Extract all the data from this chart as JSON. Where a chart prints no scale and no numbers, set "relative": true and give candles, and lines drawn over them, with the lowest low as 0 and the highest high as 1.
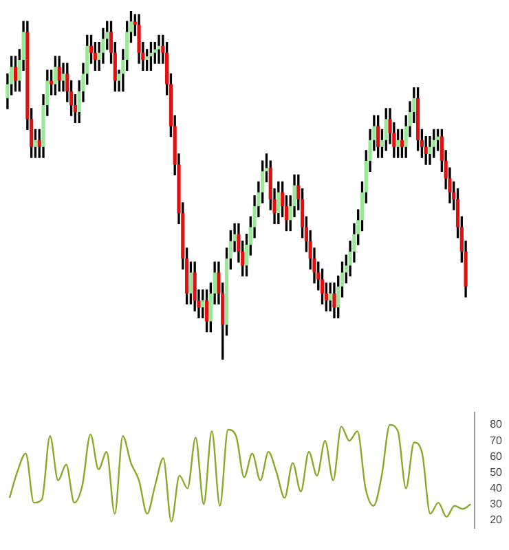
{
  "chart_data": [
    {
      "type": "candlestick",
      "relative": true,
      "categories": [
        null,
        null,
        null,
        null,
        null,
        null,
        null,
        null,
        null,
        null,
        null,
        null,
        null,
        null,
        null,
        null,
        null,
        null,
        null,
        null,
        null,
        null,
        null,
        null,
        null,
        null,
        null,
        null,
        null,
        null,
        null,
        null,
        null,
        null,
        null,
        null,
        null,
        null,
        null,
        null,
        null,
        null,
        null,
        null,
        null,
        null,
        null,
        null,
        null,
        null,
        null,
        null,
        null,
        null,
        null,
        null,
        null,
        null,
        null,
        null,
        null,
        null,
        null,
        null,
        null,
        null,
        null,
        null,
        null,
        null,
        null,
        null,
        null,
        null,
        null,
        null,
        null,
        null,
        null,
        null,
        null,
        null,
        null,
        null,
        null,
        null,
        null,
        null,
        null,
        null,
        null,
        null,
        null,
        null,
        null,
        null,
        null,
        null,
        null,
        null,
        null,
        null,
        null,
        null,
        null,
        null,
        null,
        null,
        null,
        null,
        null,
        null,
        null,
        null,
        null,
        null
      ],
      "ohlc": [
        [
          0.75,
          0.82,
          0.72,
          0.79
        ],
        [
          0.79,
          0.87,
          0.76,
          0.84
        ],
        [
          0.84,
          0.87,
          0.77,
          0.8
        ],
        [
          0.8,
          0.89,
          0.77,
          0.86
        ],
        [
          0.86,
          0.97,
          0.83,
          0.94
        ],
        [
          0.94,
          0.97,
          0.66,
          0.69
        ],
        [
          0.69,
          0.72,
          0.58,
          0.61
        ],
        [
          0.61,
          0.66,
          0.58,
          0.63
        ],
        [
          0.63,
          0.66,
          0.58,
          0.61
        ],
        [
          0.61,
          0.76,
          0.58,
          0.73
        ],
        [
          0.73,
          0.83,
          0.7,
          0.8
        ],
        [
          0.8,
          0.83,
          0.76,
          0.79
        ],
        [
          0.79,
          0.87,
          0.76,
          0.84
        ],
        [
          0.84,
          0.87,
          0.77,
          0.8
        ],
        [
          0.8,
          0.85,
          0.77,
          0.82
        ],
        [
          0.82,
          0.85,
          0.74,
          0.77
        ],
        [
          0.77,
          0.8,
          0.7,
          0.73
        ],
        [
          0.73,
          0.76,
          0.68,
          0.71
        ],
        [
          0.71,
          0.8,
          0.68,
          0.77
        ],
        [
          0.77,
          0.85,
          0.74,
          0.82
        ],
        [
          0.82,
          0.93,
          0.79,
          0.9
        ],
        [
          0.9,
          0.93,
          0.85,
          0.88
        ],
        [
          0.88,
          0.91,
          0.83,
          0.86
        ],
        [
          0.86,
          0.91,
          0.83,
          0.88
        ],
        [
          0.88,
          0.95,
          0.85,
          0.92
        ],
        [
          0.92,
          0.97,
          0.89,
          0.94
        ],
        [
          0.94,
          0.97,
          0.85,
          0.88
        ],
        [
          0.88,
          0.91,
          0.77,
          0.8
        ],
        [
          0.8,
          0.83,
          0.77,
          0.82
        ],
        [
          0.82,
          0.89,
          0.77,
          0.86
        ],
        [
          0.86,
          0.97,
          0.83,
          0.94
        ],
        [
          0.94,
          1.0,
          0.91,
          0.97
        ],
        [
          0.97,
          0.99,
          0.93,
          0.96
        ],
        [
          0.96,
          0.99,
          0.85,
          0.88
        ],
        [
          0.88,
          0.91,
          0.83,
          0.86
        ],
        [
          0.86,
          0.89,
          0.83,
          0.87
        ],
        [
          0.87,
          0.91,
          0.83,
          0.88
        ],
        [
          0.88,
          0.91,
          0.85,
          0.89
        ],
        [
          0.89,
          0.93,
          0.85,
          0.9
        ],
        [
          0.9,
          0.93,
          0.85,
          0.88
        ],
        [
          0.88,
          0.91,
          0.76,
          0.79
        ],
        [
          0.79,
          0.82,
          0.64,
          0.67
        ],
        [
          0.67,
          0.7,
          0.53,
          0.56
        ],
        [
          0.56,
          0.59,
          0.39,
          0.42
        ],
        [
          0.42,
          0.45,
          0.26,
          0.29
        ],
        [
          0.29,
          0.32,
          0.16,
          0.19
        ],
        [
          0.19,
          0.28,
          0.16,
          0.25
        ],
        [
          0.25,
          0.28,
          0.14,
          0.17
        ],
        [
          0.17,
          0.2,
          0.12,
          0.15
        ],
        [
          0.15,
          0.2,
          0.12,
          0.17
        ],
        [
          0.17,
          0.2,
          0.08,
          0.11
        ],
        [
          0.11,
          0.22,
          0.08,
          0.19
        ],
        [
          0.19,
          0.28,
          0.16,
          0.25
        ],
        [
          0.25,
          0.28,
          0.16,
          0.19
        ],
        [
          0.19,
          0.22,
          0.0,
          0.1
        ],
        [
          0.1,
          0.32,
          0.07,
          0.29
        ],
        [
          0.29,
          0.37,
          0.26,
          0.34
        ],
        [
          0.34,
          0.39,
          0.31,
          0.36
        ],
        [
          0.36,
          0.39,
          0.28,
          0.31
        ],
        [
          0.31,
          0.34,
          0.24,
          0.27
        ],
        [
          0.27,
          0.36,
          0.24,
          0.33
        ],
        [
          0.33,
          0.41,
          0.3,
          0.38
        ],
        [
          0.38,
          0.47,
          0.35,
          0.44
        ],
        [
          0.44,
          0.51,
          0.41,
          0.48
        ],
        [
          0.48,
          0.57,
          0.45,
          0.54
        ],
        [
          0.54,
          0.59,
          0.51,
          0.55
        ],
        [
          0.55,
          0.57,
          0.43,
          0.46
        ],
        [
          0.46,
          0.49,
          0.39,
          0.42
        ],
        [
          0.42,
          0.51,
          0.39,
          0.48
        ],
        [
          0.48,
          0.51,
          0.41,
          0.44
        ],
        [
          0.44,
          0.47,
          0.37,
          0.4
        ],
        [
          0.4,
          0.47,
          0.37,
          0.44
        ],
        [
          0.44,
          0.53,
          0.41,
          0.5
        ],
        [
          0.5,
          0.53,
          0.43,
          0.46
        ],
        [
          0.46,
          0.49,
          0.35,
          0.38
        ],
        [
          0.38,
          0.41,
          0.31,
          0.34
        ],
        [
          0.34,
          0.37,
          0.26,
          0.29
        ],
        [
          0.29,
          0.32,
          0.22,
          0.25
        ],
        [
          0.25,
          0.28,
          0.2,
          0.23
        ],
        [
          0.23,
          0.26,
          0.16,
          0.19
        ],
        [
          0.19,
          0.22,
          0.14,
          0.17
        ],
        [
          0.17,
          0.22,
          0.14,
          0.19
        ],
        [
          0.19,
          0.22,
          0.12,
          0.15
        ],
        [
          0.15,
          0.24,
          0.12,
          0.21
        ],
        [
          0.21,
          0.28,
          0.18,
          0.25
        ],
        [
          0.25,
          0.3,
          0.22,
          0.27
        ],
        [
          0.27,
          0.34,
          0.24,
          0.31
        ],
        [
          0.31,
          0.39,
          0.28,
          0.36
        ],
        [
          0.36,
          0.43,
          0.33,
          0.4
        ],
        [
          0.4,
          0.51,
          0.37,
          0.48
        ],
        [
          0.48,
          0.6,
          0.45,
          0.57
        ],
        [
          0.57,
          0.66,
          0.54,
          0.63
        ],
        [
          0.63,
          0.7,
          0.6,
          0.67
        ],
        [
          0.67,
          0.7,
          0.58,
          0.61
        ],
        [
          0.61,
          0.66,
          0.58,
          0.63
        ],
        [
          0.63,
          0.72,
          0.6,
          0.69
        ],
        [
          0.69,
          0.72,
          0.62,
          0.65
        ],
        [
          0.65,
          0.68,
          0.58,
          0.61
        ],
        [
          0.61,
          0.66,
          0.58,
          0.63
        ],
        [
          0.63,
          0.66,
          0.58,
          0.61
        ],
        [
          0.61,
          0.7,
          0.58,
          0.67
        ],
        [
          0.67,
          0.74,
          0.64,
          0.71
        ],
        [
          0.71,
          0.78,
          0.68,
          0.75
        ],
        [
          0.75,
          0.78,
          0.6,
          0.63
        ],
        [
          0.63,
          0.66,
          0.58,
          0.61
        ],
        [
          0.61,
          0.64,
          0.56,
          0.59
        ],
        [
          0.59,
          0.64,
          0.56,
          0.61
        ],
        [
          0.61,
          0.66,
          0.58,
          0.63
        ],
        [
          0.63,
          0.66,
          0.6,
          0.64
        ],
        [
          0.64,
          0.66,
          0.54,
          0.57
        ],
        [
          0.57,
          0.6,
          0.49,
          0.52
        ],
        [
          0.52,
          0.55,
          0.45,
          0.48
        ],
        [
          0.48,
          0.51,
          0.43,
          0.46
        ],
        [
          0.46,
          0.49,
          0.35,
          0.38
        ],
        [
          0.38,
          0.41,
          0.28,
          0.31
        ],
        [
          0.31,
          0.34,
          0.18,
          0.21
        ]
      ]
    },
    {
      "type": "line",
      "categories": [
        null,
        null,
        null,
        null,
        null,
        null,
        null,
        null,
        null,
        null,
        null,
        null,
        null,
        null,
        null,
        null,
        null,
        null,
        null,
        null,
        null,
        null,
        null,
        null,
        null,
        null,
        null,
        null,
        null,
        null,
        null,
        null,
        null,
        null,
        null,
        null,
        null,
        null,
        null,
        null,
        null,
        null,
        null,
        null,
        null,
        null,
        null,
        null,
        null,
        null,
        null,
        null,
        null,
        null,
        null,
        null,
        null,
        null
      ],
      "series": [
        {
          "color": "#8aa82a",
          "values": [
            34,
            51,
            62,
            31,
            33,
            73,
            45,
            55,
            31,
            42,
            74,
            52,
            63,
            24,
            73,
            56,
            45,
            24,
            42,
            59,
            19,
            48,
            40,
            72,
            30,
            76,
            29,
            77,
            73,
            47,
            62,
            45,
            63,
            50,
            34,
            56,
            38,
            63,
            48,
            70,
            45,
            79,
            70,
            76,
            40,
            29,
            48,
            80,
            76,
            40,
            69,
            62,
            24,
            31,
            22,
            29,
            27,
            30
          ]
        }
      ],
      "ylim": [
        15,
        88
      ],
      "yticks": [
        20,
        30,
        40,
        50,
        60,
        70,
        80
      ],
      "marker": "none",
      "grid": false
    }
  ]
}
